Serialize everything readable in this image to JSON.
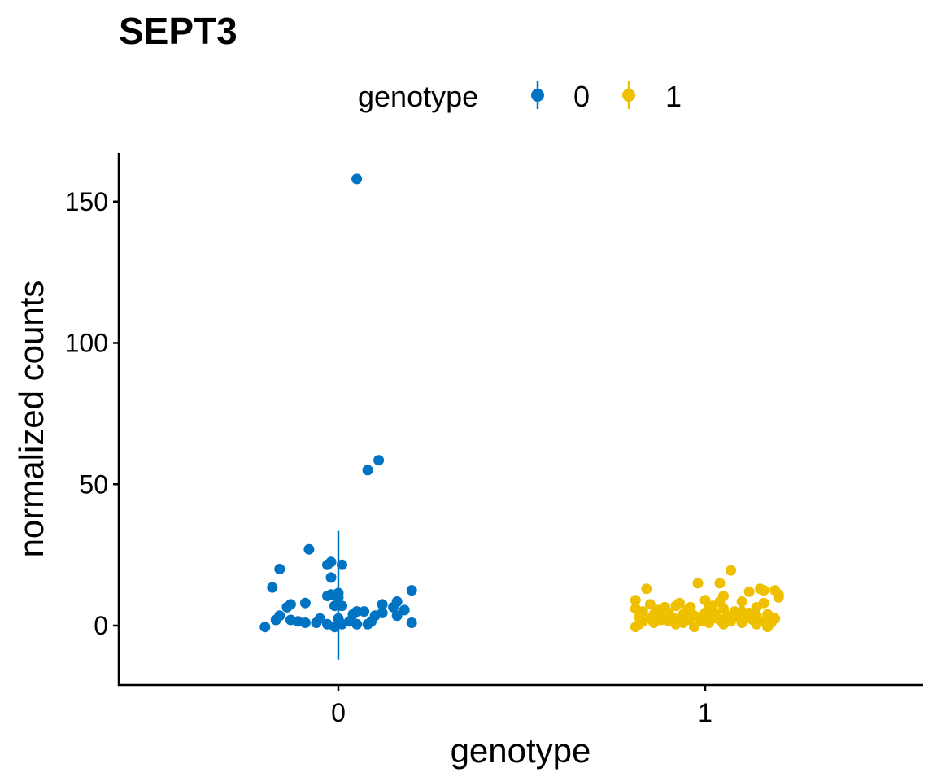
{
  "chart_data": {
    "type": "scatter",
    "title": "SEPT3",
    "xlabel": "genotype",
    "ylabel": "normalized counts",
    "categories": [
      "0",
      "1"
    ],
    "yticks": [
      0,
      50,
      100,
      150
    ],
    "ylim": [
      -21,
      166
    ],
    "xlim": [
      -0.6,
      1.6
    ],
    "grid": false,
    "legend": {
      "title": "genotype",
      "placement": "top",
      "entries": [
        "0",
        "1"
      ]
    },
    "colors": {
      "0": "#0073C2",
      "1": "#EFC000"
    },
    "series": [
      {
        "name": "0",
        "category": 0,
        "errorbar": {
          "x": 0,
          "ymin": -12,
          "ymax": 33.5
        },
        "points": [
          [
            0.05,
            158
          ],
          [
            0.11,
            58.5
          ],
          [
            0.08,
            55
          ],
          [
            -0.08,
            27
          ],
          [
            -0.02,
            22.5
          ],
          [
            -0.03,
            21.5
          ],
          [
            0.01,
            21.5
          ],
          [
            -0.16,
            20
          ],
          [
            -0.02,
            17
          ],
          [
            -0.18,
            13.5
          ],
          [
            0.2,
            12.5
          ],
          [
            0.0,
            11.5
          ],
          [
            -0.02,
            11
          ],
          [
            0.0,
            10
          ],
          [
            -0.03,
            10.5
          ],
          [
            0.16,
            8.5
          ],
          [
            -0.09,
            8
          ],
          [
            -0.13,
            7.5
          ],
          [
            0.12,
            7.5
          ],
          [
            -0.01,
            7
          ],
          [
            0.01,
            7
          ],
          [
            -0.14,
            6.5
          ],
          [
            0.15,
            6.5
          ],
          [
            0.18,
            5.5
          ],
          [
            0.07,
            5
          ],
          [
            0.05,
            5
          ],
          [
            0.12,
            4.5
          ],
          [
            0.04,
            4
          ],
          [
            -0.16,
            3.5
          ],
          [
            0.16,
            3.5
          ],
          [
            0.1,
            3.5
          ],
          [
            -0.17,
            2
          ],
          [
            -0.13,
            2
          ],
          [
            -0.05,
            2.5
          ],
          [
            0.0,
            2.5
          ],
          [
            0.03,
            1.5
          ],
          [
            0.09,
            1.5
          ],
          [
            0.2,
            1.0
          ],
          [
            -0.11,
            1.5
          ],
          [
            -0.09,
            1
          ],
          [
            -0.06,
            1
          ],
          [
            -0.03,
            0.5
          ],
          [
            0.01,
            0.5
          ],
          [
            0.05,
            0.5
          ],
          [
            0.08,
            0.5
          ],
          [
            -0.2,
            -0.5
          ],
          [
            -0.01,
            -0.5
          ]
        ]
      },
      {
        "name": "1",
        "category": 1,
        "errorbar": {
          "x": 1,
          "ymin": 0,
          "ymax": 12
        },
        "points": [
          [
            1.07,
            19.5
          ],
          [
            0.98,
            15
          ],
          [
            1.04,
            15
          ],
          [
            0.84,
            13
          ],
          [
            1.15,
            13
          ],
          [
            1.16,
            12.5
          ],
          [
            1.19,
            12.5
          ],
          [
            1.12,
            12
          ],
          [
            1.2,
            11
          ],
          [
            1.05,
            10.5
          ],
          [
            1.2,
            10
          ],
          [
            0.81,
            9
          ],
          [
            1.0,
            9
          ],
          [
            1.1,
            8.5
          ],
          [
            1.04,
            8.5
          ],
          [
            0.93,
            8
          ],
          [
            1.16,
            8
          ],
          [
            0.85,
            7.5
          ],
          [
            0.92,
            7
          ],
          [
            1.02,
            7
          ],
          [
            0.89,
            6.5
          ],
          [
            0.96,
            6.5
          ],
          [
            1.14,
            6.5
          ],
          [
            1.01,
            6
          ],
          [
            1.05,
            6
          ],
          [
            0.81,
            6
          ],
          [
            0.87,
            5.5
          ],
          [
            0.95,
            5.5
          ],
          [
            1.1,
            5
          ],
          [
            1.08,
            5
          ],
          [
            0.83,
            5
          ],
          [
            0.9,
            4.5
          ],
          [
            1.0,
            4.5
          ],
          [
            1.12,
            4.5
          ],
          [
            1.17,
            4
          ],
          [
            0.86,
            4
          ],
          [
            0.94,
            4
          ],
          [
            1.03,
            4
          ],
          [
            0.88,
            3.5
          ],
          [
            0.97,
            3.5
          ],
          [
            1.06,
            3.5
          ],
          [
            1.14,
            3.5
          ],
          [
            0.82,
            3
          ],
          [
            0.91,
            3
          ],
          [
            0.99,
            3
          ],
          [
            1.09,
            3
          ],
          [
            1.18,
            3
          ],
          [
            0.85,
            2.5
          ],
          [
            0.93,
            2.5
          ],
          [
            1.02,
            2.5
          ],
          [
            1.11,
            2.5
          ],
          [
            1.19,
            2.5
          ],
          [
            0.88,
            2
          ],
          [
            0.96,
            2
          ],
          [
            1.04,
            2
          ],
          [
            1.13,
            2
          ],
          [
            0.83,
            1.5
          ],
          [
            0.9,
            1.5
          ],
          [
            0.99,
            1.5
          ],
          [
            1.07,
            1.5
          ],
          [
            1.16,
            1.5
          ],
          [
            0.86,
            1
          ],
          [
            0.94,
            1
          ],
          [
            1.01,
            1
          ],
          [
            1.1,
            1
          ],
          [
            1.18,
            1
          ],
          [
            0.82,
            0.5
          ],
          [
            0.92,
            0.5
          ],
          [
            1.05,
            0.5
          ],
          [
            1.14,
            0.5
          ],
          [
            0.97,
            -0.5
          ],
          [
            1.17,
            -0.5
          ],
          [
            0.81,
            -0.5
          ]
        ]
      }
    ]
  }
}
